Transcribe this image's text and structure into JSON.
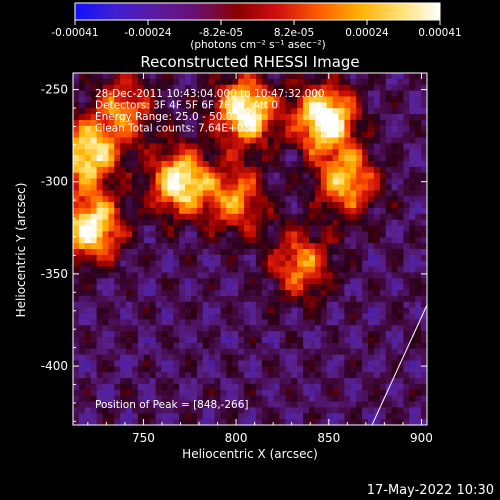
{
  "colorbar": {
    "ticks": [
      "-0.00041",
      "-0.00024",
      "-8.2e-05",
      "8.2e-05",
      "0.00024",
      "0.00041"
    ],
    "unit_text": "(photons cm⁻² s⁻¹ asec⁻²)",
    "range": [
      -0.00041,
      0.00041
    ],
    "colors": [
      "#1010ff",
      "#4020d0",
      "#5a1aa0",
      "#6a1070",
      "#8a0000",
      "#d01010",
      "#ff5a00",
      "#ffb000",
      "#ffe070",
      "#ffffff"
    ]
  },
  "chart_data": {
    "type": "heatmap",
    "title": "Reconstructed RHESSI Image",
    "xlabel": "Heliocentric X (arcsec)",
    "ylabel": "Heliocentric Y (arcsec)",
    "xlim": [
      712,
      903
    ],
    "ylim": [
      -432,
      -241
    ],
    "xticks": [
      "750",
      "800",
      "850",
      "900"
    ],
    "xtick_values": [
      750,
      800,
      850,
      900
    ],
    "yticks": [
      "-250",
      "-300",
      "-350",
      "-400"
    ],
    "ytick_values": [
      -250,
      -300,
      -350,
      -400
    ],
    "hotspots": [
      {
        "x": 848,
        "y": -266,
        "intensity": 1.0
      },
      {
        "x": 805,
        "y": -262,
        "intensity": 0.95
      },
      {
        "x": 770,
        "y": -300,
        "intensity": 0.9
      },
      {
        "x": 722,
        "y": -325,
        "intensity": 0.9
      },
      {
        "x": 720,
        "y": -285,
        "intensity": 0.85
      },
      {
        "x": 860,
        "y": -300,
        "intensity": 0.7
      },
      {
        "x": 835,
        "y": -345,
        "intensity": 0.6
      },
      {
        "x": 800,
        "y": -310,
        "intensity": 0.6
      },
      {
        "x": 740,
        "y": -260,
        "intensity": 0.55
      }
    ],
    "annotations": [
      "28-Dec-2011 10:43:04.000 to 10:47:32.000",
      "Detectors: 3F 4F 5F 6F 7F 8F, Att 0",
      "Energy Range: 25.0 - 50.0 keV",
      "Clean    Total counts: 7.64E+03"
    ],
    "peak_label": "Position of Peak = [848,-266]",
    "peak": {
      "x": 848,
      "y": -266
    }
  },
  "timestamp": "17-May-2022 10:30"
}
